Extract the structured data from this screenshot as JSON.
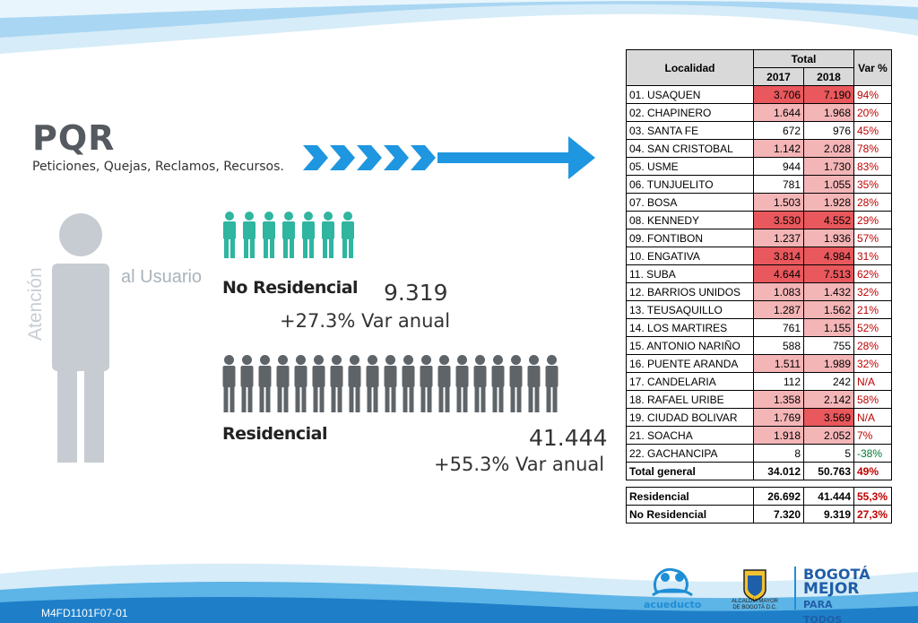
{
  "title": "PQR",
  "subtitle": "Peticiones, Quejas, Reclamos, Recursos.",
  "side_text": {
    "atencion": "Atención",
    "al_usuario": "al Usuario"
  },
  "no_residencial": {
    "label": "No Residencial",
    "value": "9.319",
    "variation": "+27.3% Var  anual",
    "icon_count": 7
  },
  "residencial": {
    "label": "Residencial",
    "value": "41.444",
    "variation": "+55.3% Var  anual",
    "icon_count": 19
  },
  "colors": {
    "teal": "#2fb5a0",
    "grey_person": "#5f6469",
    "light_person": "#c7ccd2",
    "arrow_blue": "#1e96e0",
    "heat_red": "#e8585c",
    "heat_pink": "#f4b5b7",
    "var_red": "#c00000",
    "var_green": "#007a33",
    "header_grey": "#d9d9d9"
  },
  "table": {
    "header": {
      "localidad": "Localidad",
      "total": "Total",
      "y2017": "2017",
      "y2018": "2018",
      "var": "Var %"
    },
    "rows": [
      {
        "loc": "01. USAQUEN",
        "v2017": "3.706",
        "v2018": "7.190",
        "var": "94%"
      },
      {
        "loc": "02. CHAPINERO",
        "v2017": "1.644",
        "v2018": "1.968",
        "var": "20%"
      },
      {
        "loc": "03. SANTA FE",
        "v2017": "672",
        "v2018": "976",
        "var": "45%"
      },
      {
        "loc": "04. SAN CRISTOBAL",
        "v2017": "1.142",
        "v2018": "2.028",
        "var": "78%"
      },
      {
        "loc": "05. USME",
        "v2017": "944",
        "v2018": "1.730",
        "var": "83%"
      },
      {
        "loc": "06. TUNJUELITO",
        "v2017": "781",
        "v2018": "1.055",
        "var": "35%"
      },
      {
        "loc": "07. BOSA",
        "v2017": "1.503",
        "v2018": "1.928",
        "var": "28%"
      },
      {
        "loc": "08. KENNEDY",
        "v2017": "3.530",
        "v2018": "4.552",
        "var": "29%"
      },
      {
        "loc": "09. FONTIBON",
        "v2017": "1.237",
        "v2018": "1.936",
        "var": "57%"
      },
      {
        "loc": "10. ENGATIVA",
        "v2017": "3.814",
        "v2018": "4.984",
        "var": "31%"
      },
      {
        "loc": "11. SUBA",
        "v2017": "4.644",
        "v2018": "7.513",
        "var": "62%"
      },
      {
        "loc": "12. BARRIOS UNIDOS",
        "v2017": "1.083",
        "v2018": "1.432",
        "var": "32%"
      },
      {
        "loc": "13. TEUSAQUILLO",
        "v2017": "1.287",
        "v2018": "1.562",
        "var": "21%"
      },
      {
        "loc": "14. LOS MARTIRES",
        "v2017": "761",
        "v2018": "1.155",
        "var": "52%"
      },
      {
        "loc": "15. ANTONIO NARIÑO",
        "v2017": "588",
        "v2018": "755",
        "var": "28%"
      },
      {
        "loc": "16. PUENTE ARANDA",
        "v2017": "1.511",
        "v2018": "1.989",
        "var": "32%"
      },
      {
        "loc": "17. CANDELARIA",
        "v2017": "112",
        "v2018": "242",
        "var": "N/A"
      },
      {
        "loc": "18. RAFAEL URIBE",
        "v2017": "1.358",
        "v2018": "2.142",
        "var": "58%"
      },
      {
        "loc": "19. CIUDAD BOLIVAR",
        "v2017": "1.769",
        "v2018": "3.569",
        "var": "N/A"
      },
      {
        "loc": "21. SOACHA",
        "v2017": "1.918",
        "v2018": "2.052",
        "var": "7%"
      },
      {
        "loc": "22. GACHANCIPA",
        "v2017": "8",
        "v2018": "5",
        "var": "-38%"
      }
    ],
    "total": {
      "loc": "Total general",
      "v2017": "34.012",
      "v2018": "50.763",
      "var": "49%"
    }
  },
  "summary": [
    {
      "label": "Residencial",
      "v2017": "26.692",
      "v2018": "41.444",
      "var": "55,3%"
    },
    {
      "label": "No Residencial",
      "v2017": "7.320",
      "v2018": "9.319",
      "var": "27,3%"
    }
  ],
  "logos": {
    "acueducto": "acueducto",
    "alcaldia_line1": "ALCALDÍA MAYOR",
    "alcaldia_line2": "DE BOGOTÁ D.C.",
    "bogota_line1": "BOGOTÁ",
    "bogota_line2": "MEJOR",
    "bogota_line3": "PARA TODOS"
  },
  "doc_code": "M4FD1101F07-01"
}
